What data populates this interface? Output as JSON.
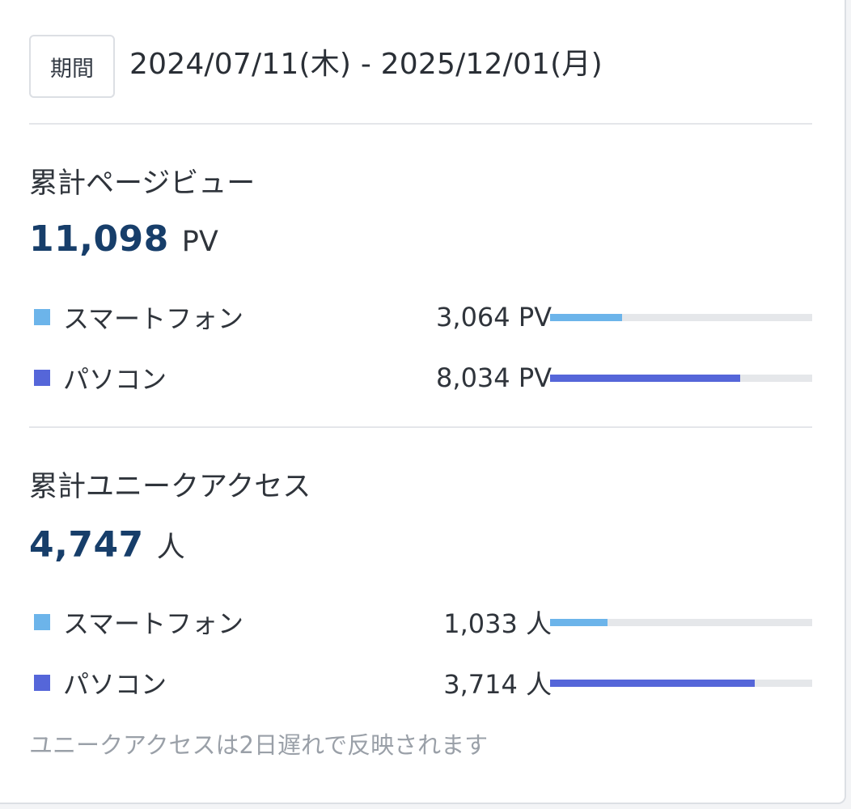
{
  "period": {
    "badge_label": "期間",
    "range_text": "2024/07/11(木) - 2025/12/01(月)"
  },
  "pageviews": {
    "title": "累計ページビュー",
    "total": "11,098",
    "unit": "PV",
    "rows": [
      {
        "label": "スマートフォン",
        "value_text": "3,064 PV",
        "value": 3064,
        "share": 0.276,
        "color": "#6cb4ea"
      },
      {
        "label": "パソコン",
        "value_text": "8,034 PV",
        "value": 8034,
        "share": 0.724,
        "color": "#5566d9"
      }
    ]
  },
  "unique": {
    "title": "累計ユニークアクセス",
    "total": "4,747",
    "unit": "人",
    "rows": [
      {
        "label": "スマートフォン",
        "value_text": "1,033 人",
        "value": 1033,
        "share": 0.218,
        "color": "#6cb4ea"
      },
      {
        "label": "パソコン",
        "value_text": "3,714 人",
        "value": 3714,
        "share": 0.782,
        "color": "#5566d9"
      }
    ]
  },
  "note": "ユニークアクセスは2日遅れで反映されます"
}
